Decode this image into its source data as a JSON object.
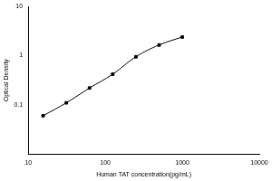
{
  "chart_data": {
    "type": "line",
    "x_label": "Human TAT concentration(pg/mL)",
    "y_label": "Optical Density",
    "x": [
      15.6,
      31.25,
      62.5,
      125,
      250,
      500,
      1000
    ],
    "values": [
      0.06,
      0.11,
      0.22,
      0.42,
      0.95,
      1.65,
      2.4
    ],
    "color": "#000000",
    "marker": "square",
    "line_style": "solid",
    "log": true,
    "grid": false,
    "xlim": [
      10,
      10000
    ],
    "xticks": [
      10,
      100,
      1000,
      10000
    ],
    "ylim": [
      0.01,
      10
    ],
    "yticks": [
      0.1,
      1,
      10
    ]
  }
}
